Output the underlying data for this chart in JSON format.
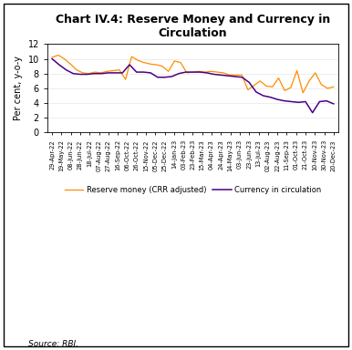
{
  "title": "Chart IV.4: Reserve Money and Currency in\nCirculation",
  "ylabel": "Per cent, y-o-y",
  "source": "Source: RBI.",
  "ylim": [
    0,
    12
  ],
  "yticks": [
    0,
    2,
    4,
    6,
    8,
    10,
    12
  ],
  "bg_color": "#FFFFFF",
  "plot_bg_color": "#FFFFFF",
  "reserve_money_color": "#FF8C00",
  "currency_color": "#4B0082",
  "legend1": "Reserve money (CRR adjusted)",
  "legend2": "Currency in circulation",
  "x_labels": [
    "29-Apr-22",
    "19-May-22",
    "08-Jun-22",
    "28-Jun-22",
    "18-Jul-22",
    "07-Aug-22",
    "27-Aug-22",
    "16-Sep-22",
    "06-Oct-22",
    "26-Oct-22",
    "15-Nov-22",
    "05-Dec-22",
    "25-Dec-22",
    "14-Jan-23",
    "03-Feb-23",
    "23-Feb-23",
    "15-Mar-23",
    "04-Apr-23",
    "24-Apr-23",
    "14-May-23",
    "03-Jun-23",
    "23-Jun-23",
    "13-Jul-23",
    "02-Aug-23",
    "22-Aug-23",
    "11-Sep-23",
    "01-Oct-23",
    "21-Oct-23",
    "10-Nov-23",
    "30-Nov-23",
    "20-Dec-23"
  ],
  "reserve_money_y": [
    10.2,
    10.5,
    10.0,
    9.3,
    8.5,
    8.1,
    8.0,
    8.2,
    8.1,
    8.3,
    8.4,
    8.5,
    7.2,
    10.3,
    9.8,
    9.5,
    9.3,
    9.2,
    9.0,
    8.3,
    9.7,
    9.5,
    8.1,
    8.2,
    8.3,
    8.2,
    8.3,
    8.2,
    8.1,
    7.8,
    7.8,
    7.8,
    5.8,
    6.4,
    7.0,
    6.3,
    6.2,
    7.4,
    5.7,
    6.1,
    8.4,
    5.4,
    7.0,
    8.1,
    6.5,
    6.0,
    6.2
  ],
  "currency_y": [
    10.0,
    9.2,
    8.5,
    8.0,
    7.9,
    7.9,
    8.0,
    8.0,
    8.1,
    8.1,
    8.1,
    9.2,
    8.2,
    8.2,
    8.1,
    7.5,
    7.5,
    7.6,
    8.0,
    8.2,
    8.2,
    8.2,
    8.1,
    7.9,
    7.8,
    7.7,
    7.6,
    7.5,
    6.8,
    5.5,
    5.0,
    4.8,
    4.5,
    4.3,
    4.2,
    4.1,
    4.2,
    2.7,
    4.2,
    4.3,
    3.9
  ],
  "title_fontsize": 9,
  "ylabel_fontsize": 7,
  "tick_fontsize": 7,
  "xtick_fontsize": 4.8,
  "legend_fontsize": 6,
  "source_fontsize": 6.5
}
